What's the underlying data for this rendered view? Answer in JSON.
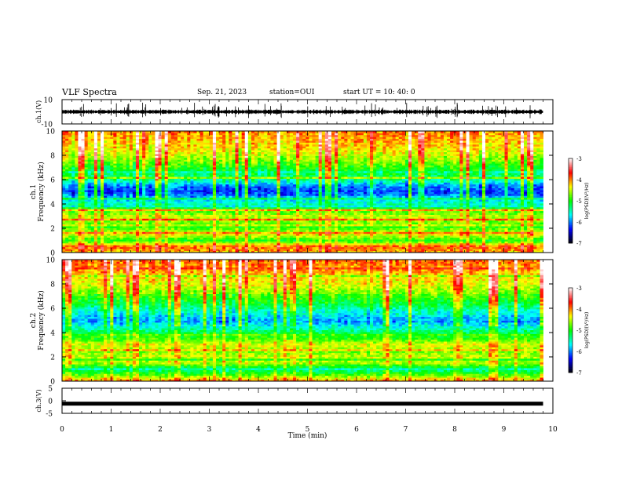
{
  "header": {
    "title": "VLF Spectra",
    "date": "Sep. 21, 2023",
    "station": "station=OUI",
    "start": "start UT =  10: 40: 0"
  },
  "colors": {
    "colormap": [
      "#000000",
      "#0000ff",
      "#00ffff",
      "#00ff00",
      "#ffff00",
      "#ff0000",
      "#ffffff"
    ],
    "trace": "#000000",
    "frame": "#000000"
  },
  "chart_data": [
    {
      "type": "line",
      "name": "ch1-waveform",
      "ylabel": "ch.1(V)",
      "ylim": [
        -10,
        10
      ],
      "ytick_labels": [
        "10",
        "-10"
      ],
      "xlim": [
        0,
        10
      ],
      "x_label": "",
      "baseline": 0,
      "amplitude_typical": 1.5,
      "end_min": 9.8
    },
    {
      "type": "heatmap",
      "name": "ch1-spectrogram",
      "ylabel_top": "ch.1",
      "ylabel": "Frequency (kHz)",
      "ylim": [
        0,
        10
      ],
      "ytick_labels": [
        "0",
        "2",
        "4",
        "6",
        "8",
        "10"
      ],
      "xlim": [
        0,
        10
      ],
      "end_min": 9.8,
      "colorbar": {
        "label": "log(PSD)(V²/Hz)",
        "range": [
          -7,
          -3
        ],
        "tick_labels": [
          "-3",
          "-4",
          "-5",
          "-6",
          "-7"
        ]
      },
      "band_levels_by_freq_khz": {
        "freqs": [
          0,
          0.5,
          1,
          1.5,
          2,
          2.5,
          3,
          3.5,
          4,
          4.5,
          5,
          5.5,
          6,
          6.5,
          7,
          7.5,
          8,
          8.5,
          9,
          9.5,
          10
        ],
        "levels": [
          -4.2,
          -3.9,
          -5.0,
          -4.4,
          -4.8,
          -4.7,
          -4.5,
          -4.9,
          -5.5,
          -5.8,
          -6.2,
          -6.0,
          -5.4,
          -5.2,
          -5.0,
          -4.7,
          -4.5,
          -4.3,
          -4.2,
          -4.1,
          -4.0
        ]
      }
    },
    {
      "type": "heatmap",
      "name": "ch2-spectrogram",
      "ylabel_top": "ch.2",
      "ylabel": "Frequency (kHz)",
      "ylim": [
        0,
        10
      ],
      "ytick_labels": [
        "0",
        "2",
        "4",
        "6",
        "8",
        "10"
      ],
      "xlim": [
        0,
        10
      ],
      "end_min": 9.8,
      "colorbar": {
        "label": "log(PSD)(V²/Hz)",
        "range": [
          -7,
          -3
        ],
        "tick_labels": [
          "-3",
          "-4",
          "-5",
          "-6",
          "-7"
        ]
      },
      "band_levels_by_freq_khz": {
        "freqs": [
          0,
          0.5,
          1,
          1.5,
          2,
          2.5,
          3,
          3.5,
          4,
          4.5,
          5,
          5.5,
          6,
          6.5,
          7,
          7.5,
          8,
          8.5,
          9,
          9.5,
          10
        ],
        "levels": [
          -4.0,
          -4.8,
          -5.4,
          -4.6,
          -4.5,
          -4.7,
          -4.4,
          -4.9,
          -5.2,
          -5.6,
          -5.9,
          -5.7,
          -5.4,
          -5.1,
          -4.9,
          -4.6,
          -4.4,
          -4.3,
          -4.1,
          -4.0,
          -3.9
        ]
      }
    },
    {
      "type": "line",
      "name": "ch3-waveform",
      "ylabel": "ch.3(V)",
      "ylim": [
        -5,
        5
      ],
      "ytick_labels": [
        "5",
        "0",
        "-5"
      ],
      "xlim": [
        0,
        10
      ],
      "baseline": -1.3,
      "end_min": 9.8,
      "xlabel": "Time (min)",
      "xtick_labels": [
        "0",
        "1",
        "2",
        "3",
        "4",
        "5",
        "6",
        "7",
        "8",
        "9",
        "10"
      ]
    }
  ]
}
